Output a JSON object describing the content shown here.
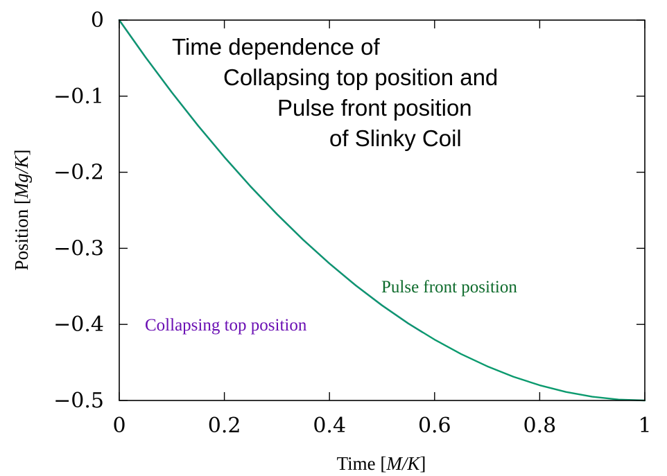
{
  "chart_data": {
    "type": "line",
    "title_lines": [
      "Time dependence of",
      "Collapsing top position and",
      "Pulse front position",
      "of Slinky Coil"
    ],
    "xlabel": {
      "prefix": "Time  [",
      "unit": "M/K",
      "suffix": "]"
    },
    "ylabel": {
      "prefix": "Position [",
      "unit": "Mg/K",
      "suffix": "]"
    },
    "xlim": [
      0,
      1
    ],
    "ylim": [
      -0.5,
      0
    ],
    "xticks": [
      0,
      0.2,
      0.4,
      0.6,
      0.8,
      1
    ],
    "xtick_labels": [
      "0",
      "0.2",
      "0.4",
      "0.6",
      "0.8",
      "1"
    ],
    "yticks": [
      0,
      -0.1,
      -0.2,
      -0.3,
      -0.4,
      -0.5
    ],
    "ytick_labels": [
      "0",
      "−0.1",
      "−0.2",
      "−0.3",
      "−0.4",
      "−0.5"
    ],
    "grid": false,
    "series": [
      {
        "name": "Collapsing top position",
        "color": "#7a12c8",
        "x": [
          0,
          0.05,
          0.1,
          0.15,
          0.2,
          0.25,
          0.3,
          0.35,
          0.4,
          0.45,
          0.5,
          0.55,
          0.577
        ],
        "y": [
          0,
          -0.0488,
          -0.095,
          -0.1388,
          -0.18,
          -0.2188,
          -0.255,
          -0.2888,
          -0.32,
          -0.3488,
          -0.375,
          -0.3988,
          -0.4104
        ]
      },
      {
        "name": "Pulse front position",
        "color": "#0b9a6e",
        "x": [
          0,
          0.05,
          0.1,
          0.15,
          0.2,
          0.25,
          0.3,
          0.35,
          0.4,
          0.45,
          0.5,
          0.55,
          0.6,
          0.65,
          0.7,
          0.75,
          0.8,
          0.85,
          0.9,
          0.95,
          1.0
        ],
        "y": [
          0,
          -0.0488,
          -0.095,
          -0.1388,
          -0.18,
          -0.2188,
          -0.255,
          -0.2888,
          -0.32,
          -0.3488,
          -0.375,
          -0.3988,
          -0.42,
          -0.4388,
          -0.455,
          -0.4688,
          -0.48,
          -0.4888,
          -0.495,
          -0.4988,
          -0.5
        ]
      }
    ],
    "label_colors": {
      "Collapsing top position": "#6a0fb3",
      "Pulse front position": "#0e6b2c"
    }
  }
}
